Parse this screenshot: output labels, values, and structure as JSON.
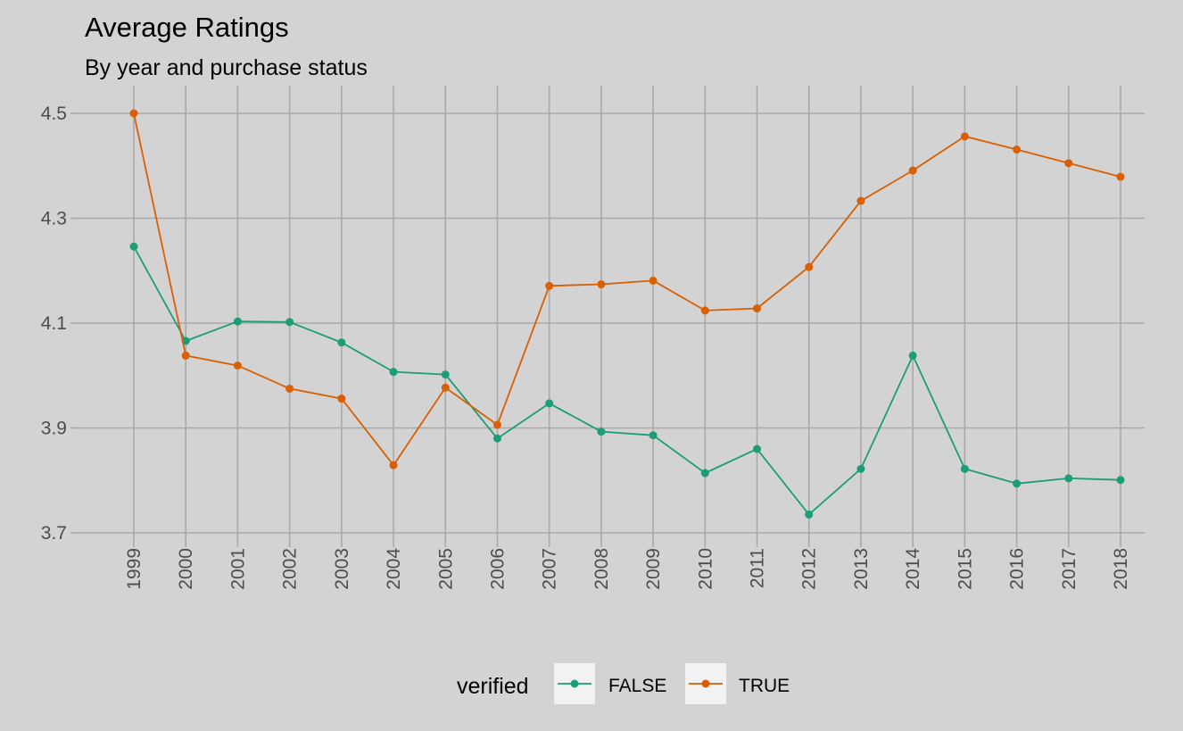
{
  "chart_data": {
    "type": "line",
    "title": "Average Ratings",
    "subtitle": "By year and purchase status",
    "xlabel": "",
    "ylabel": "",
    "x": [
      "1999",
      "2000",
      "2001",
      "2002",
      "2003",
      "2004",
      "2005",
      "2006",
      "2007",
      "2008",
      "2009",
      "2010",
      "2011",
      "2012",
      "2013",
      "2014",
      "2015",
      "2016",
      "2017",
      "2018"
    ],
    "yticks": [
      "3.7",
      "3.9",
      "4.1",
      "4.3",
      "4.5"
    ],
    "ylim": [
      3.7,
      4.5
    ],
    "grid": true,
    "legend": {
      "title": "verified",
      "position": "bottom"
    },
    "series": [
      {
        "name": "FALSE",
        "color": "#1b9e77",
        "values": [
          4.246,
          4.066,
          4.103,
          4.102,
          4.063,
          4.007,
          4.002,
          3.88,
          3.947,
          3.893,
          3.886,
          3.814,
          3.86,
          3.735,
          3.822,
          4.038,
          3.822,
          3.794,
          3.804,
          3.801
        ]
      },
      {
        "name": "TRUE",
        "color": "#d95f02",
        "values": [
          4.5,
          4.038,
          4.019,
          3.975,
          3.956,
          3.829,
          3.977,
          3.906,
          4.171,
          4.174,
          4.181,
          4.124,
          4.128,
          4.207,
          4.333,
          4.391,
          4.456,
          4.431,
          4.405,
          4.379
        ]
      }
    ]
  }
}
